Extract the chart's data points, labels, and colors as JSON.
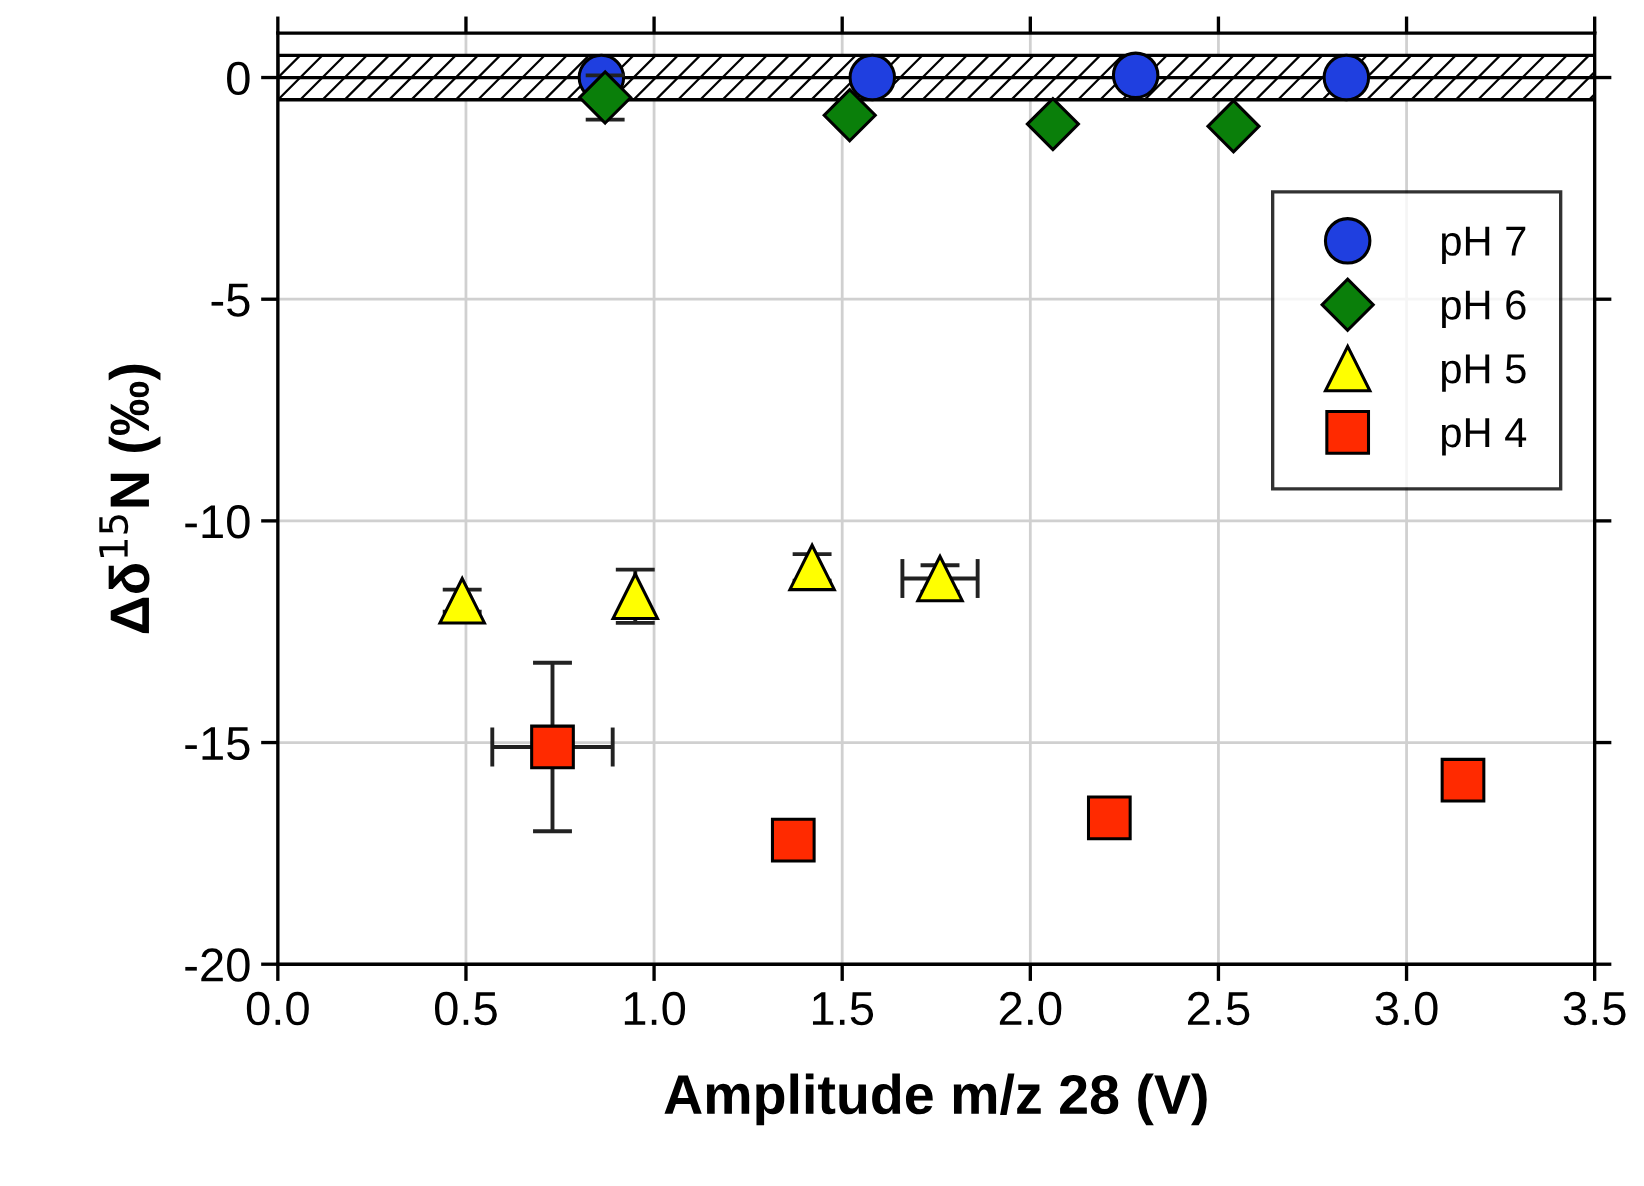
{
  "chart_data": {
    "type": "scatter",
    "xlabel": "Amplitude m/z 28 (V)",
    "ylabel": "Δδ$^{15}$N (‰)",
    "xlim": [
      0,
      3.5
    ],
    "ylim": [
      -20,
      1
    ],
    "xticks": [
      {
        "value": 0,
        "label": "0.0"
      },
      {
        "value": 0.5,
        "label": "0.5"
      },
      {
        "value": 1,
        "label": "1.0"
      },
      {
        "value": 1.5,
        "label": "1.5"
      },
      {
        "value": 2,
        "label": "2.0"
      },
      {
        "value": 2.5,
        "label": "2.5"
      },
      {
        "value": 3,
        "label": "3.0"
      },
      {
        "value": 3.5,
        "label": "3.5"
      }
    ],
    "yticks": [
      -20,
      -15,
      -10,
      -5,
      0
    ],
    "grid": true,
    "legend": "right",
    "ref_lines": [
      {
        "axis": "y",
        "value": 0,
        "color": "#000000",
        "line_style": "solid"
      }
    ],
    "bands": [
      {
        "axis": "y",
        "from": -0.5,
        "to": 0.5,
        "color": "#000000"
      }
    ],
    "series": [
      {
        "name": "pH 7",
        "color": "#1f3fe0",
        "marker": "circle",
        "x": [
          0.86,
          1.58,
          2.28,
          2.84
        ],
        "values": [
          0,
          0,
          0.05,
          0
        ]
      },
      {
        "name": "pH 6",
        "color": "#0a7f0a",
        "marker": "diamond",
        "x": [
          0.87,
          1.52,
          2.06,
          2.54
        ],
        "values": [
          -0.45,
          -0.85,
          -1.05,
          -1.1
        ],
        "errors": [
          0.5,
          null,
          null,
          null
        ]
      },
      {
        "name": "pH 5",
        "color": "#ffff00",
        "marker": "triangle",
        "x": [
          0.49,
          0.95,
          1.42,
          1.76
        ],
        "values": [
          -11.8,
          -11.7,
          -11.05,
          -11.3
        ],
        "errors": [
          0.25,
          0.6,
          0.3,
          0.3
        ],
        "xerrors": [
          null,
          null,
          null,
          0.1
        ]
      },
      {
        "name": "pH 4",
        "color": "#ff2a00",
        "marker": "square",
        "x": [
          0.73,
          1.37,
          2.21,
          3.15
        ],
        "values": [
          -15.1,
          -17.2,
          -16.7,
          -15.85
        ],
        "errors": [
          1.9,
          null,
          null,
          null
        ],
        "xerrors": [
          0.16,
          null,
          null,
          null
        ]
      }
    ]
  }
}
